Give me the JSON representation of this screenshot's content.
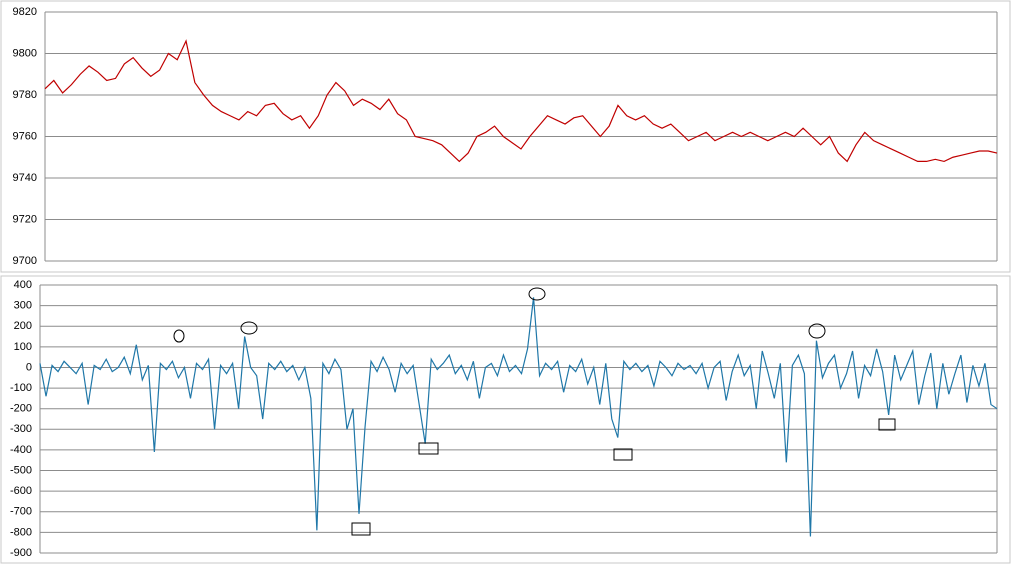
{
  "chart_data": [
    {
      "type": "line",
      "ylim": [
        9700,
        9820
      ],
      "yticks": [
        9700,
        9720,
        9740,
        9760,
        9780,
        9800,
        9820
      ],
      "grid": true,
      "series": [
        {
          "color": "#c00000",
          "values": [
            9783,
            9787,
            9781,
            9785,
            9790,
            9794,
            9791,
            9787,
            9788,
            9795,
            9798,
            9793,
            9789,
            9792,
            9800,
            9797,
            9806,
            9786,
            9780,
            9775,
            9772,
            9770,
            9768,
            9772,
            9770,
            9775,
            9776,
            9771,
            9768,
            9770,
            9764,
            9770,
            9780,
            9786,
            9782,
            9775,
            9778,
            9776,
            9773,
            9778,
            9771,
            9768,
            9760,
            9759,
            9758,
            9756,
            9752,
            9748,
            9752,
            9760,
            9762,
            9765,
            9760,
            9757,
            9754,
            9760,
            9765,
            9770,
            9768,
            9766,
            9769,
            9770,
            9765,
            9760,
            9765,
            9775,
            9770,
            9768,
            9770,
            9766,
            9764,
            9766,
            9762,
            9758,
            9760,
            9762,
            9758,
            9760,
            9762,
            9760,
            9762,
            9760,
            9758,
            9760,
            9762,
            9760,
            9764,
            9760,
            9756,
            9760,
            9752,
            9748,
            9756,
            9762,
            9758,
            9756,
            9754,
            9752,
            9750,
            9748,
            9748,
            9749,
            9748,
            9750,
            9751,
            9752,
            9753,
            9753,
            9752
          ]
        }
      ]
    },
    {
      "type": "line",
      "ylim": [
        -900,
        400
      ],
      "yticks": [
        -900,
        -800,
        -700,
        -600,
        -500,
        -400,
        -300,
        -200,
        -100,
        0,
        100,
        200,
        300,
        400
      ],
      "grid": true,
      "series": [
        {
          "color": "#1f77a8",
          "values": [
            20,
            -140,
            10,
            -20,
            30,
            0,
            -30,
            20,
            -180,
            10,
            -10,
            40,
            -20,
            0,
            50,
            -30,
            110,
            -60,
            10,
            -410,
            20,
            -10,
            30,
            -50,
            0,
            -150,
            20,
            -10,
            40,
            -300,
            10,
            -30,
            20,
            -200,
            150,
            0,
            -40,
            -250,
            20,
            -10,
            30,
            -20,
            10,
            -60,
            0,
            -150,
            -790,
            20,
            -30,
            40,
            -10,
            -300,
            -200,
            -710,
            -290,
            30,
            -20,
            50,
            -10,
            -120,
            20,
            -30,
            10,
            -180,
            -370,
            40,
            -10,
            20,
            60,
            -30,
            10,
            -60,
            30,
            -150,
            0,
            20,
            -40,
            60,
            -20,
            10,
            -30,
            90,
            340,
            -40,
            20,
            -10,
            30,
            -120,
            10,
            -20,
            40,
            -80,
            0,
            -180,
            20,
            -250,
            -340,
            30,
            -10,
            20,
            -20,
            10,
            -90,
            30,
            0,
            -40,
            20,
            -10,
            10,
            -30,
            20,
            -100,
            0,
            30,
            -160,
            -20,
            60,
            -40,
            10,
            -200,
            80,
            -30,
            -150,
            20,
            -460,
            10,
            60,
            -30,
            -820,
            130,
            -50,
            20,
            60,
            -100,
            -30,
            80,
            -150,
            10,
            -40,
            90,
            -20,
            -230,
            60,
            -60,
            10,
            80,
            -180,
            -40,
            70,
            -200,
            20,
            -130,
            -30,
            60,
            -170,
            10,
            -90,
            20,
            -180,
            -200
          ]
        }
      ]
    }
  ]
}
